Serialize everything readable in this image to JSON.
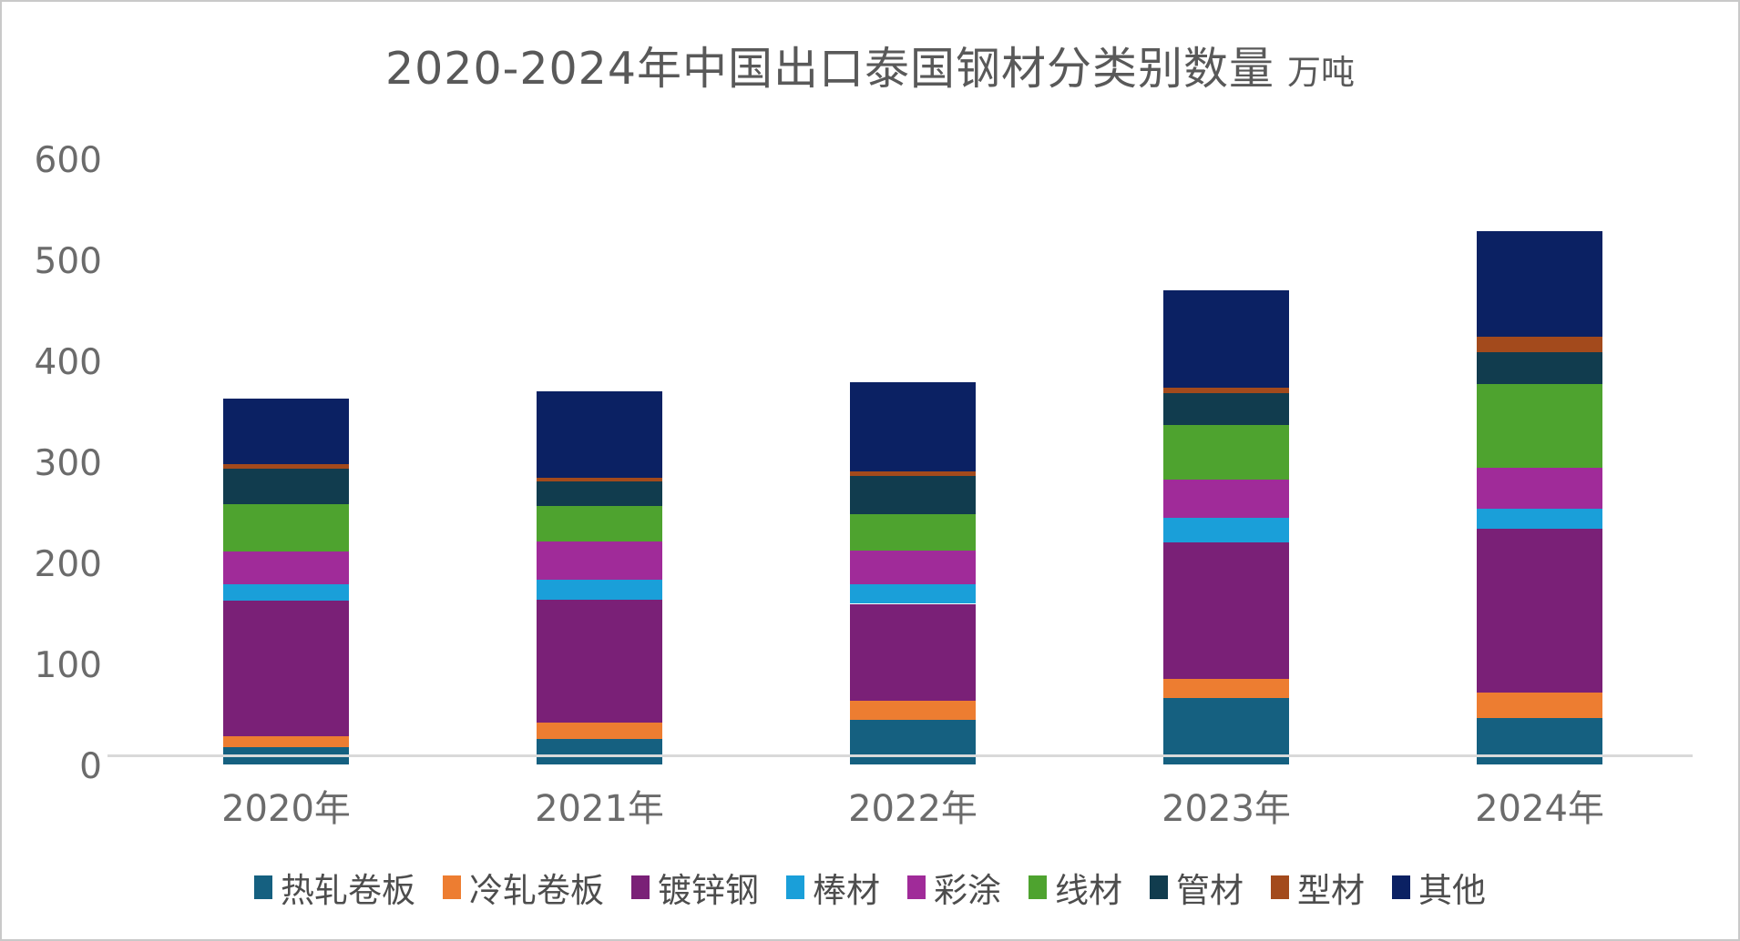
{
  "title": {
    "main": "2020-2024年中国出口泰国钢材分类别数量",
    "unit": "万吨"
  },
  "axis": {
    "y_ticks": [
      0,
      100,
      200,
      300,
      400,
      500,
      600
    ],
    "x_labels": [
      "2020年",
      "2021年",
      "2022年",
      "2023年",
      "2024年"
    ]
  },
  "colors": {
    "axis_line": "#d9d9d9",
    "text_gray": "#6b6b6b",
    "title_gray": "#595959"
  },
  "chart_data": {
    "type": "bar",
    "stacked": true,
    "title": "2020-2024年中国出口泰国钢材分类别数量",
    "unit": "万吨",
    "categories": [
      "2020年",
      "2021年",
      "2022年",
      "2023年",
      "2024年"
    ],
    "series": [
      {
        "name": "热轧卷板",
        "color": "#156080",
        "values": [
          17,
          25,
          44,
          66,
          46
        ]
      },
      {
        "name": "冷轧卷板",
        "color": "#ed7d31",
        "values": [
          11,
          16,
          19,
          19,
          25
        ]
      },
      {
        "name": "镀锌钢",
        "color": "#7a2077",
        "values": [
          134,
          122,
          96,
          135,
          162
        ]
      },
      {
        "name": "棒材",
        "color": "#1a9fd9",
        "values": [
          16,
          20,
          19,
          24,
          20
        ]
      },
      {
        "name": "彩涂",
        "color": "#a02b99",
        "values": [
          33,
          38,
          34,
          38,
          41
        ]
      },
      {
        "name": "线材",
        "color": "#4ea32f",
        "values": [
          47,
          35,
          36,
          54,
          83
        ]
      },
      {
        "name": "管材",
        "color": "#113c4e",
        "values": [
          35,
          24,
          38,
          32,
          31
        ]
      },
      {
        "name": "型材",
        "color": "#a34a1c",
        "values": [
          4,
          4,
          4,
          5,
          15
        ]
      },
      {
        "name": "其他",
        "color": "#0b2163",
        "values": [
          65,
          85,
          88,
          96,
          105
        ]
      }
    ],
    "totals": [
      362,
      369,
      378,
      469,
      528
    ],
    "ylim": [
      0,
      600
    ],
    "grid": false,
    "legend_position": "bottom"
  }
}
